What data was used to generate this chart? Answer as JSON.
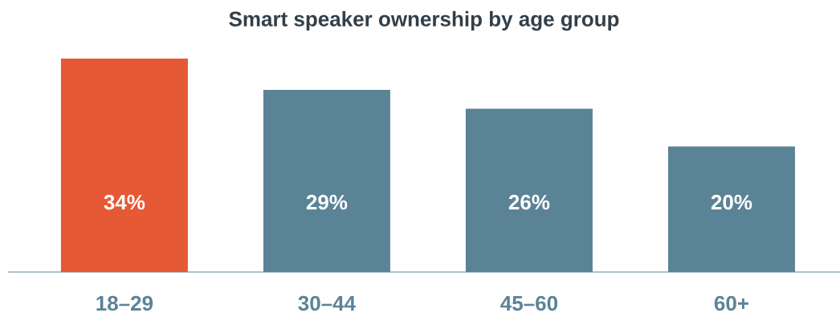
{
  "chart_data": {
    "type": "bar",
    "title": "Smart speaker ownership by age group",
    "categories": [
      "18–29",
      "30–44",
      "45–60",
      "60+"
    ],
    "values": [
      34,
      29,
      26,
      20
    ],
    "colors": [
      "#e55934",
      "#5b8396",
      "#5b8396",
      "#5b8396"
    ],
    "value_labels": [
      "34%",
      "29%",
      "26%",
      "20%"
    ]
  }
}
